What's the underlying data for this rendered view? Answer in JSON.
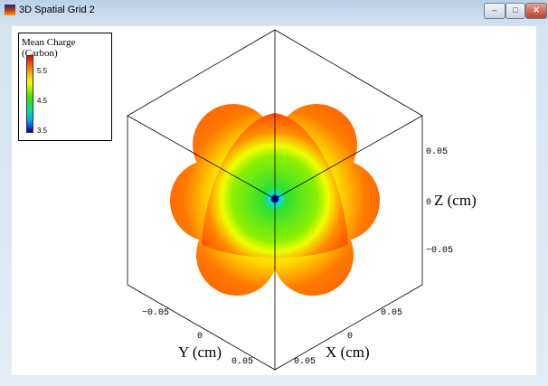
{
  "window": {
    "title": "3D Spatial Grid 2",
    "buttons": {
      "minimize": "–",
      "maximize": "□",
      "close": "✕"
    }
  },
  "legend": {
    "title": "Mean Charge (Carbon)",
    "ticks": [
      "5.5",
      "4.5",
      "3.5"
    ],
    "colormap": [
      "#0000c0",
      "#00a0ff",
      "#00e0a0",
      "#40e000",
      "#f0ff00",
      "#ffc000",
      "#ff4000",
      "#d01000"
    ],
    "range": [
      3.5,
      5.9
    ]
  },
  "axes": {
    "x": {
      "label": "X (cm)",
      "ticks": [
        "0",
        "0.05"
      ]
    },
    "y": {
      "label": "Y (cm)",
      "ticks": [
        "−0.05",
        "0",
        "0.05"
      ]
    },
    "z": {
      "label": "Z (cm)",
      "ticks": [
        "0.05",
        "0",
        "−0.05"
      ]
    },
    "x_extra_tick": "0.05"
  }
}
